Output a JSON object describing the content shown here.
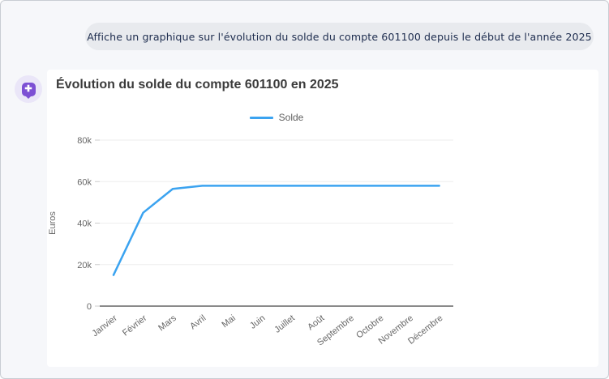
{
  "chat": {
    "user_message": "Affiche un graphique sur l'évolution du solde du compte 601100 depuis le début de l'année 2025",
    "assistant_icon_glyph": "✚"
  },
  "chart": {
    "title": "Évolution du solde du compte 601100 en 2025",
    "legend_label": "Solde"
  },
  "colors": {
    "series_line": "#3ba3f0",
    "grid_line": "#ededed",
    "axis_line": "#8a8a8a",
    "tick_mark": "#cccccc",
    "tick_text": "#666666",
    "accent_purple": "#7c4fd4",
    "bubble_bg": "#e8eaee",
    "bubble_text": "#1d2c4e"
  },
  "chart_data": {
    "type": "line",
    "title": "Évolution du solde du compte 601100 en 2025",
    "categories": [
      "Janvier",
      "Février",
      "Mars",
      "Avril",
      "Mai",
      "Juin",
      "Juillet",
      "Août",
      "Septembre",
      "Octobre",
      "Novembre",
      "Décembre"
    ],
    "series": [
      {
        "name": "Solde",
        "color": "#3ba3f0",
        "values": [
          15000,
          45000,
          56500,
          58000,
          58000,
          58000,
          58000,
          58000,
          58000,
          58000,
          58000,
          58000
        ]
      }
    ],
    "xlabel": "",
    "ylabel": "Euros",
    "ylim": [
      0,
      80000
    ],
    "yticks": [
      0,
      20000,
      40000,
      60000,
      80000
    ],
    "ytick_labels": [
      "0",
      "20k",
      "40k",
      "60k",
      "80k"
    ],
    "grid": true,
    "legend_position": "top-center",
    "x_label_rotation_deg": -38
  }
}
